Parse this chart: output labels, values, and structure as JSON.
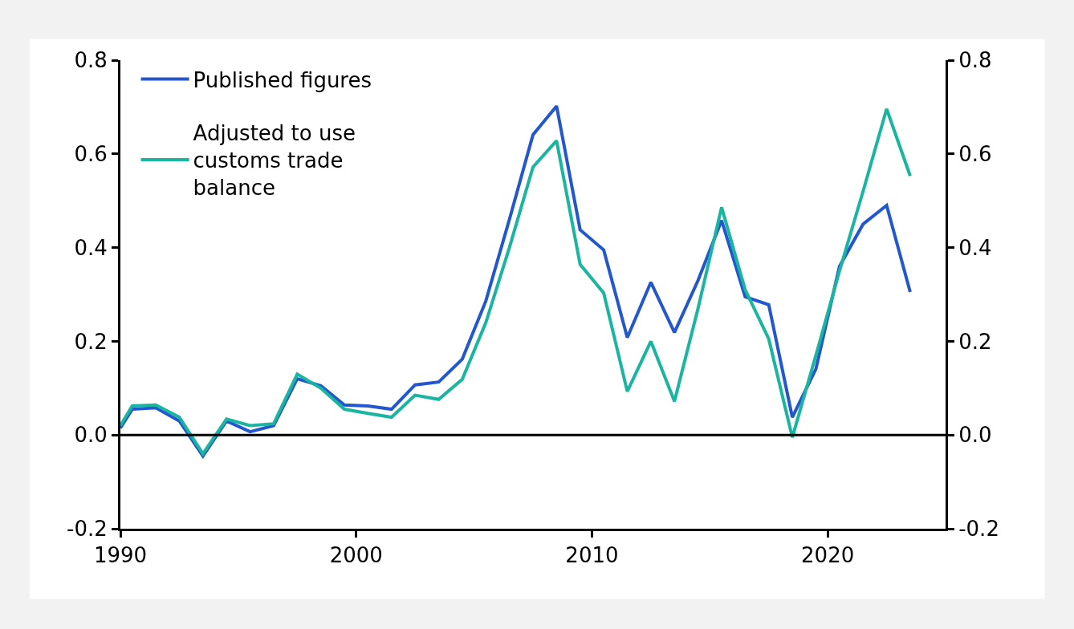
{
  "chart_data": {
    "type": "line",
    "x": [
      1990,
      1990.5,
      1991.5,
      1992.5,
      1993.5,
      1994.5,
      1995.5,
      1996.5,
      1997.5,
      1998.5,
      1999.5,
      2000.5,
      2001.5,
      2002.5,
      2003.5,
      2004.5,
      2005.5,
      2006.5,
      2007.5,
      2008.5,
      2009.5,
      2010.5,
      2011.5,
      2012.5,
      2013.5,
      2014.5,
      2015.5,
      2016.5,
      2017.5,
      2018.5,
      2019.5,
      2020.5,
      2021.5,
      2022.5,
      2023.5
    ],
    "series": [
      {
        "name": "Published figures",
        "color": "#2257cf",
        "values": [
          0.015,
          0.055,
          0.058,
          0.03,
          -0.045,
          0.03,
          0.007,
          0.02,
          0.12,
          0.105,
          0.064,
          0.062,
          0.055,
          0.107,
          0.113,
          0.162,
          0.286,
          0.46,
          0.641,
          0.702,
          0.438,
          0.395,
          0.208,
          0.326,
          0.219,
          0.33,
          0.458,
          0.295,
          0.278,
          0.038,
          0.141,
          0.36,
          0.45,
          0.49,
          0.305
        ]
      },
      {
        "name": "Adjusted to use customs trade balance",
        "color": "#1ab5a0",
        "values": [
          0.02,
          0.062,
          0.064,
          0.038,
          -0.04,
          0.034,
          0.02,
          0.024,
          0.13,
          0.1,
          0.055,
          0.046,
          0.038,
          0.085,
          0.076,
          0.119,
          0.24,
          0.4,
          0.572,
          0.628,
          0.364,
          0.303,
          0.093,
          0.2,
          0.072,
          0.27,
          0.486,
          0.31,
          0.205,
          -0.005,
          0.17,
          0.35,
          0.52,
          0.696,
          0.553
        ]
      }
    ],
    "xlim": [
      1990,
      2025
    ],
    "xticks": [
      1990,
      2000,
      2010,
      2020
    ],
    "ylim": [
      -0.2,
      0.8
    ],
    "yticks": [
      {
        "value": -0.2,
        "label": "-0.2"
      },
      {
        "value": 0,
        "label": "0.0"
      },
      {
        "value": 0.2,
        "label": "0.2"
      },
      {
        "value": 0.4,
        "label": "0.4"
      },
      {
        "value": 0.6,
        "label": "0.6"
      },
      {
        "value": 0.8,
        "label": "0.8"
      }
    ],
    "y2lim": [
      -0.2,
      0.8
    ],
    "y2ticks": [
      {
        "value": -0.2,
        "label": "-0.2"
      },
      {
        "value": 0,
        "label": "0.0"
      },
      {
        "value": 0.2,
        "label": "0.2"
      },
      {
        "value": 0.4,
        "label": "0.4"
      },
      {
        "value": 0.6,
        "label": "0.6"
      },
      {
        "value": 0.8,
        "label": "0.8"
      }
    ],
    "ref_lines": [
      {
        "axis": "y",
        "value": 0,
        "color": "#000000"
      }
    ],
    "legend": "top left",
    "marker": "none",
    "line_style": "solid"
  }
}
